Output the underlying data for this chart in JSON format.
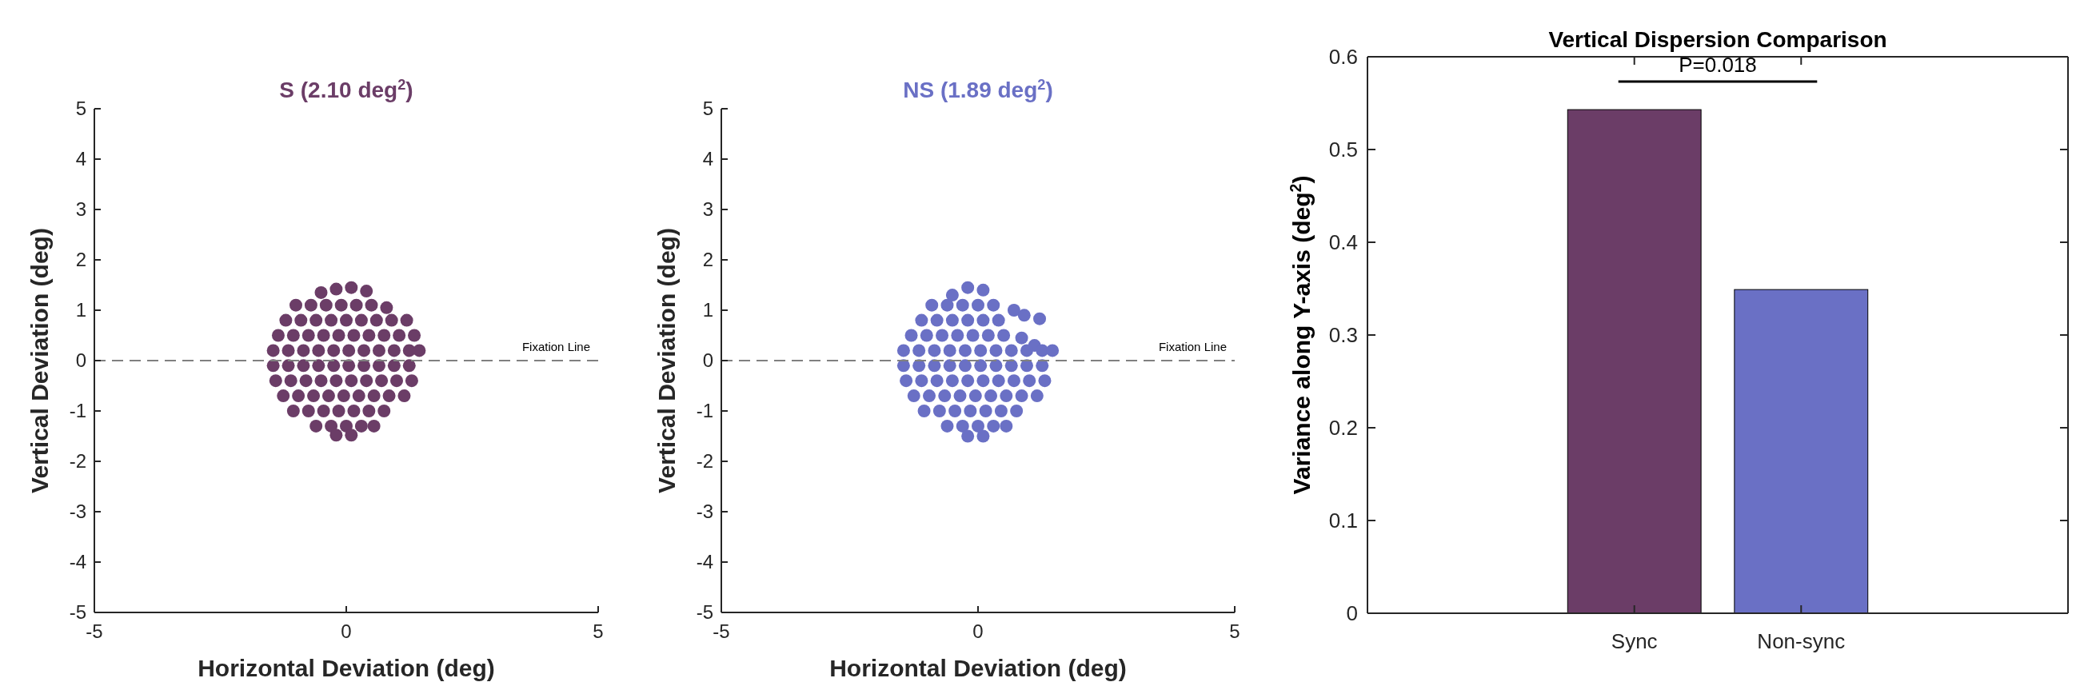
{
  "chart_data": [
    {
      "type": "scatter",
      "title": "S  (2.10 deg$^{2}$)",
      "xlabel": "Horizontal Deviation (deg)",
      "ylabel": "Vertical Deviation (deg)",
      "xlim": [
        -5,
        5
      ],
      "ylim": [
        -5,
        5
      ],
      "xticks": [
        -5,
        0,
        5
      ],
      "yticks": [
        -5,
        -4,
        -3,
        -2,
        -1,
        0,
        1,
        2,
        3,
        4,
        5
      ],
      "marker": "circle",
      "grid": false,
      "ref_lines": [
        {
          "axis": "y",
          "value": 0,
          "label": "Fixation Line",
          "color": "#808080",
          "line_style": "dashed"
        }
      ],
      "series": [
        {
          "color": "#6b3d67",
          "x": [
            -0.5,
            -0.2,
            0.1,
            0.4,
            -1.0,
            -0.7,
            -0.4,
            -0.1,
            0.2,
            0.5,
            0.8,
            -1.2,
            -0.9,
            -0.6,
            -0.3,
            0,
            0.3,
            0.6,
            0.9,
            1.2,
            -1.35,
            -1.05,
            -0.75,
            -0.45,
            -0.15,
            0.15,
            0.45,
            0.75,
            1.05,
            1.35,
            -1.45,
            -1.15,
            -0.85,
            -0.55,
            -0.25,
            0.05,
            0.35,
            0.65,
            0.95,
            1.25,
            1.45,
            -1.45,
            -1.15,
            -0.85,
            -0.55,
            -0.25,
            0.05,
            0.35,
            0.65,
            0.95,
            1.25,
            -1.4,
            -1.1,
            -0.8,
            -0.5,
            -0.2,
            0.1,
            0.4,
            0.7,
            1.0,
            1.3,
            -1.25,
            -0.95,
            -0.65,
            -0.35,
            -0.05,
            0.25,
            0.55,
            0.85,
            1.15,
            -1.05,
            -0.75,
            -0.45,
            -0.15,
            0.15,
            0.45,
            0.75,
            -0.6,
            -0.3,
            0,
            0.3,
            0.55,
            -0.2,
            0.1
          ],
          "values": [
            1.35,
            1.42,
            1.45,
            1.38,
            1.1,
            1.1,
            1.1,
            1.1,
            1.1,
            1.1,
            1.05,
            0.8,
            0.8,
            0.8,
            0.8,
            0.8,
            0.8,
            0.8,
            0.8,
            0.8,
            0.5,
            0.5,
            0.5,
            0.5,
            0.5,
            0.5,
            0.5,
            0.5,
            0.5,
            0.5,
            0.2,
            0.2,
            0.2,
            0.2,
            0.2,
            0.2,
            0.2,
            0.2,
            0.2,
            0.2,
            0.2,
            -0.1,
            -0.1,
            -0.1,
            -0.1,
            -0.1,
            -0.1,
            -0.1,
            -0.1,
            -0.1,
            -0.1,
            -0.4,
            -0.4,
            -0.4,
            -0.4,
            -0.4,
            -0.4,
            -0.4,
            -0.4,
            -0.4,
            -0.4,
            -0.7,
            -0.7,
            -0.7,
            -0.7,
            -0.7,
            -0.7,
            -0.7,
            -0.7,
            -0.7,
            -1.0,
            -1.0,
            -1.0,
            -1.0,
            -1.0,
            -1.0,
            -1.0,
            -1.3,
            -1.3,
            -1.3,
            -1.3,
            -1.3,
            -1.48,
            -1.48
          ]
        }
      ]
    },
    {
      "type": "scatter",
      "title": "NS (1.89 deg$^{2}$)",
      "xlabel": "Horizontal Deviation (deg)",
      "ylabel": "Vertical Deviation (deg)",
      "xlim": [
        -5,
        5
      ],
      "ylim": [
        -5,
        5
      ],
      "xticks": [
        -5,
        0,
        5
      ],
      "yticks": [
        -5,
        -4,
        -3,
        -2,
        -1,
        0,
        1,
        2,
        3,
        4,
        5
      ],
      "marker": "circle",
      "grid": false,
      "ref_lines": [
        {
          "axis": "y",
          "value": 0,
          "label": "Fixation Line",
          "color": "#808080",
          "line_style": "dashed"
        }
      ],
      "series": [
        {
          "color": "#6a70c5",
          "x": [
            -0.5,
            -0.2,
            0.1,
            -0.9,
            -0.6,
            -0.3,
            0,
            0.3,
            0.7,
            -1.1,
            -0.8,
            -0.5,
            -0.2,
            0.1,
            0.4,
            0.9,
            1.2,
            -1.3,
            -1.0,
            -0.7,
            -0.4,
            -0.1,
            0.2,
            0.5,
            0.85,
            1.1,
            -1.45,
            -1.15,
            -0.85,
            -0.55,
            -0.25,
            0.05,
            0.35,
            0.65,
            0.95,
            1.25,
            1.45,
            -1.45,
            -1.15,
            -0.85,
            -0.55,
            -0.25,
            0.05,
            0.35,
            0.65,
            0.95,
            1.25,
            -1.4,
            -1.1,
            -0.8,
            -0.5,
            -0.2,
            0.1,
            0.4,
            0.7,
            1.0,
            1.3,
            -1.25,
            -0.95,
            -0.65,
            -0.35,
            -0.05,
            0.25,
            0.55,
            0.85,
            1.15,
            -1.05,
            -0.75,
            -0.45,
            -0.15,
            0.15,
            0.45,
            0.75,
            -0.6,
            -0.3,
            0,
            0.3,
            0.55,
            -0.2,
            0.1
          ],
          "values": [
            1.3,
            1.45,
            1.4,
            1.1,
            1.1,
            1.1,
            1.1,
            1.1,
            1.0,
            0.8,
            0.8,
            0.8,
            0.8,
            0.8,
            0.8,
            0.9,
            0.83,
            0.5,
            0.5,
            0.5,
            0.5,
            0.5,
            0.5,
            0.5,
            0.45,
            0.3,
            0.2,
            0.2,
            0.2,
            0.2,
            0.2,
            0.2,
            0.2,
            0.2,
            0.2,
            0.2,
            0.2,
            -0.1,
            -0.1,
            -0.1,
            -0.1,
            -0.1,
            -0.1,
            -0.1,
            -0.1,
            -0.1,
            -0.1,
            -0.4,
            -0.4,
            -0.4,
            -0.4,
            -0.4,
            -0.4,
            -0.4,
            -0.4,
            -0.4,
            -0.4,
            -0.7,
            -0.7,
            -0.7,
            -0.7,
            -0.7,
            -0.7,
            -0.7,
            -0.7,
            -0.7,
            -1.0,
            -1.0,
            -1.0,
            -1.0,
            -1.0,
            -1.0,
            -1.0,
            -1.3,
            -1.3,
            -1.3,
            -1.3,
            -1.3,
            -1.5,
            -1.5
          ]
        }
      ]
    },
    {
      "type": "bar",
      "title": "Vertical Dispersion Comparison",
      "ylabel": "Variance along Y-axis (deg$^{2}$)",
      "categories": [
        "Sync",
        "Non-sync"
      ],
      "values": [
        0.543,
        0.349
      ],
      "colors": [
        "#6b3d67",
        "#6a70c5"
      ],
      "ylim": [
        0,
        0.6
      ],
      "yticks": [
        0,
        0.1,
        0.2,
        0.3,
        0.4,
        0.5,
        0.6
      ],
      "grid": false,
      "annotations": [
        "P=0.018"
      ]
    }
  ]
}
